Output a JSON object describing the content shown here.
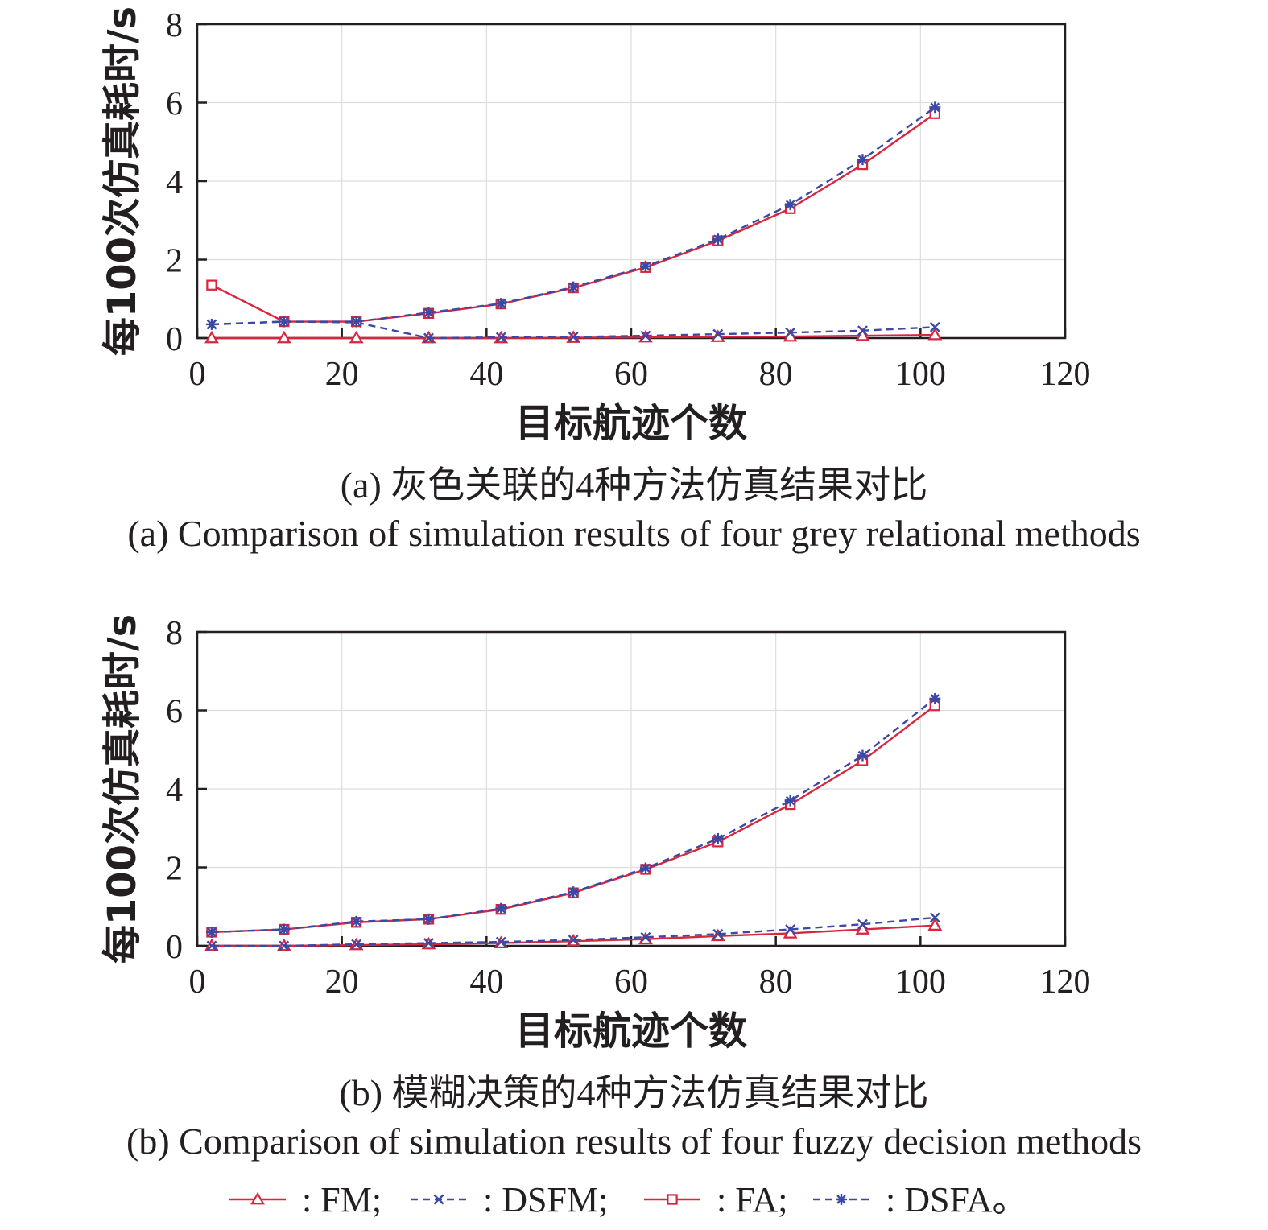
{
  "chart_data": [
    {
      "type": "line",
      "panel_id": "a",
      "caption_cn": "(a) 灰色关联的4种方法仿真结果对比",
      "caption_en": "(a) Comparison of simulation results of four grey relational methods",
      "xlabel": "目标航迹个数",
      "ylabel": "每100次仿真耗时/s",
      "xlim": [
        0,
        120
      ],
      "ylim": [
        0,
        8
      ],
      "xticks": [
        0,
        20,
        40,
        60,
        80,
        100,
        120
      ],
      "yticks": [
        0,
        2,
        4,
        6,
        8
      ],
      "grid": true,
      "x": [
        2,
        12,
        22,
        32,
        42,
        52,
        62,
        72,
        82,
        92,
        102
      ],
      "series": [
        {
          "name": "FM",
          "values": [
            0.0,
            0.0,
            0.0,
            0.0,
            0.0,
            0.01,
            0.02,
            0.03,
            0.04,
            0.06,
            0.08
          ]
        },
        {
          "name": "DSFM",
          "values": [
            0.35,
            0.42,
            0.4,
            0.0,
            0.02,
            0.03,
            0.06,
            0.1,
            0.14,
            0.19,
            0.28
          ]
        },
        {
          "name": "FA",
          "values": [
            1.35,
            0.42,
            0.42,
            0.63,
            0.87,
            1.28,
            1.8,
            2.48,
            3.3,
            4.42,
            5.72
          ]
        },
        {
          "name": "DSFA",
          "values": [
            0.35,
            0.42,
            0.42,
            0.65,
            0.88,
            1.3,
            1.83,
            2.52,
            3.4,
            4.55,
            5.88
          ]
        }
      ]
    },
    {
      "type": "line",
      "panel_id": "b",
      "caption_cn": "(b) 模糊决策的4种方法仿真结果对比",
      "caption_en": "(b) Comparison of simulation results of four fuzzy decision methods",
      "xlabel": "目标航迹个数",
      "ylabel": "每100次仿真耗时/s",
      "xlim": [
        0,
        120
      ],
      "ylim": [
        0,
        8
      ],
      "xticks": [
        0,
        20,
        40,
        60,
        80,
        100,
        120
      ],
      "yticks": [
        0,
        2,
        4,
        6,
        8
      ],
      "grid": true,
      "x": [
        2,
        12,
        22,
        32,
        42,
        52,
        62,
        72,
        82,
        92,
        102
      ],
      "series": [
        {
          "name": "FM",
          "values": [
            0.0,
            0.0,
            0.02,
            0.04,
            0.07,
            0.12,
            0.17,
            0.25,
            0.32,
            0.42,
            0.52
          ]
        },
        {
          "name": "DSFM",
          "values": [
            0.0,
            0.0,
            0.04,
            0.07,
            0.1,
            0.15,
            0.22,
            0.3,
            0.42,
            0.55,
            0.72
          ]
        },
        {
          "name": "FA",
          "values": [
            0.35,
            0.42,
            0.6,
            0.68,
            0.93,
            1.35,
            1.95,
            2.65,
            3.6,
            4.72,
            6.12
          ]
        },
        {
          "name": "DSFA",
          "values": [
            0.35,
            0.42,
            0.62,
            0.68,
            0.95,
            1.37,
            1.98,
            2.73,
            3.7,
            4.85,
            6.3
          ]
        }
      ]
    }
  ],
  "legend": {
    "entries": [
      {
        "name": "FM",
        "text": ": FM;",
        "color": "#d7263d",
        "dash": "solid",
        "marker": "triangle"
      },
      {
        "name": "DSFM",
        "text": ": DSFM;",
        "color": "#3b48a6",
        "dash": "dashed",
        "marker": "x"
      },
      {
        "name": "FA",
        "text": ": FA;",
        "color": "#d7263d",
        "dash": "solid",
        "marker": "square"
      },
      {
        "name": "DSFA",
        "text": ": DSFA。",
        "color": "#3b48a6",
        "dash": "dashed",
        "marker": "star"
      }
    ]
  },
  "colors": {
    "red": "#d7263d",
    "blue": "#3b48a6",
    "grid": "#dddddd",
    "axis": "#231f20"
  }
}
